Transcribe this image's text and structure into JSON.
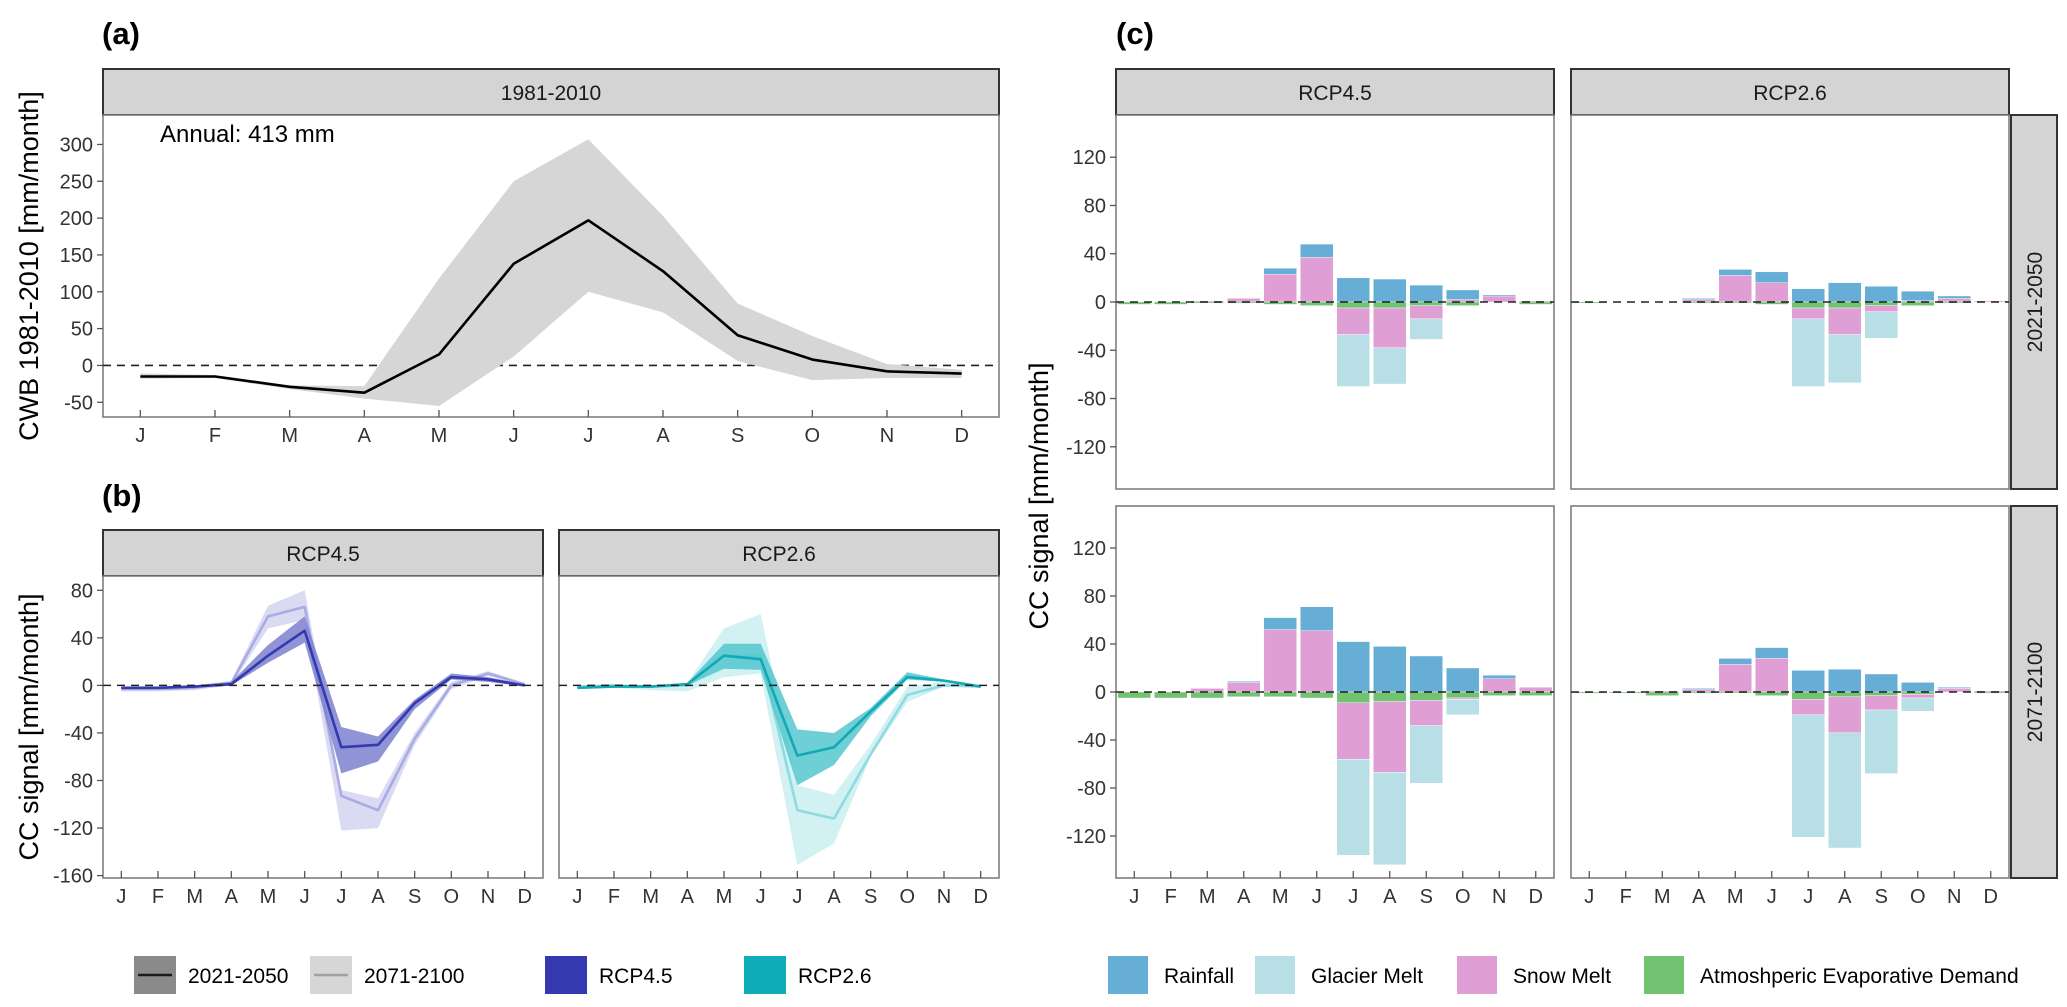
{
  "chart_data": [
    {
      "id": "a",
      "type": "line",
      "panel_label": "(a)",
      "strip": "1981-2010",
      "annotation": "Annual: 413 mm",
      "ylabel": "CWB 1981-2010 [mm/month]",
      "xlabel": "",
      "categories": [
        "J",
        "F",
        "M",
        "A",
        "M",
        "J",
        "J",
        "A",
        "S",
        "O",
        "N",
        "D"
      ],
      "ylim": [
        -70,
        340
      ],
      "yticks": [
        -50,
        0,
        50,
        100,
        150,
        200,
        250,
        300
      ],
      "reference_line": 0,
      "series": [
        {
          "name": "1981-2010",
          "color": "#000000",
          "band_color": "#d6d6d6",
          "values": [
            -15,
            -15,
            -29,
            -37,
            15,
            138,
            197,
            128,
            41,
            8,
            -8,
            -11
          ],
          "lower": [
            -18,
            -17,
            -32,
            -45,
            -55,
            12,
            100,
            72,
            6,
            -20,
            -17,
            -17
          ],
          "upper": [
            -11,
            -13,
            -27,
            -28,
            118,
            250,
            307,
            203,
            84,
            40,
            2,
            -6
          ]
        }
      ]
    },
    {
      "id": "b",
      "type": "line",
      "panel_label": "(b)",
      "ylabel": "CC signal [mm/month]",
      "categories": [
        "J",
        "F",
        "M",
        "A",
        "M",
        "J",
        "J",
        "A",
        "S",
        "O",
        "N",
        "D"
      ],
      "ylim": [
        -162,
        92
      ],
      "yticks": [
        -160,
        -120,
        -80,
        -40,
        0,
        40,
        80
      ],
      "reference_line": 0,
      "facets": [
        {
          "strip": "RCP4.5",
          "series": [
            {
              "name": "2071-2100",
              "color": "#a9ace3",
              "band_color": "#d3d5f1",
              "values": [
                -3,
                -3,
                -2,
                2,
                58,
                66,
                -93,
                -105,
                -45,
                0,
                10,
                1
              ],
              "lower": [
                -5,
                -5,
                -4,
                0,
                48,
                55,
                -122,
                -120,
                -50,
                -3,
                8,
                0
              ],
              "upper": [
                -1,
                -1,
                0,
                4,
                67,
                80,
                -88,
                -95,
                -40,
                3,
                12,
                2
              ]
            },
            {
              "name": "2021-2050",
              "color": "#3539b0",
              "band_color": "#7c80cf",
              "values": [
                -2,
                -2,
                -1,
                1,
                25,
                46,
                -52,
                -50,
                -15,
                7,
                5,
                0
              ],
              "lower": [
                -3,
                -3,
                -2,
                0,
                19,
                36,
                -74,
                -64,
                -20,
                5,
                3,
                -1
              ],
              "upper": [
                -1,
                -1,
                0,
                3,
                34,
                58,
                -35,
                -43,
                -12,
                10,
                7,
                1
              ]
            }
          ]
        },
        {
          "strip": "RCP2.6",
          "series": [
            {
              "name": "2071-2100",
              "color": "#8fdbe0",
              "band_color": "#c9eef1",
              "values": [
                -1,
                0,
                -1,
                0,
                25,
                25,
                -105,
                -112,
                -58,
                -8,
                0,
                -1
              ],
              "lower": [
                -2,
                -2,
                -4,
                -5,
                7,
                10,
                -151,
                -133,
                -60,
                -14,
                -1,
                -2
              ],
              "upper": [
                0,
                1,
                0,
                2,
                48,
                60,
                -84,
                -92,
                -50,
                -1,
                3,
                0
              ]
            },
            {
              "name": "2021-2050",
              "color": "#12a9b5",
              "band_color": "#55c7cf",
              "values": [
                -2,
                -1,
                -1,
                1,
                25,
                22,
                -59,
                -52,
                -22,
                7,
                4,
                -1
              ],
              "lower": [
                -3,
                -2,
                -2,
                0,
                14,
                13,
                -84,
                -67,
                -26,
                5,
                3,
                -2
              ],
              "upper": [
                -1,
                0,
                0,
                2,
                35,
                35,
                -37,
                -40,
                -19,
                11,
                5,
                0
              ]
            }
          ]
        }
      ],
      "legend": {
        "period_items": [
          {
            "label": "2021-2050",
            "fill": "#8a8a8a",
            "line": "#1a1a1a"
          },
          {
            "label": "2071-2100",
            "fill": "#d6d6d6",
            "line": "#a0a0a0"
          }
        ],
        "scenario_items": [
          {
            "label": "RCP4.5",
            "fill": "#3539b0"
          },
          {
            "label": "RCP2.6",
            "fill": "#0fadb9"
          }
        ]
      }
    },
    {
      "id": "c",
      "type": "bar",
      "stacked": true,
      "panel_label": "(c)",
      "ylabel": "CC signal [mm/month]",
      "categories": [
        "J",
        "F",
        "M",
        "A",
        "M",
        "J",
        "J",
        "A",
        "S",
        "O",
        "N",
        "D"
      ],
      "ylim": [
        -155,
        155
      ],
      "yticks": [
        -120,
        -80,
        -40,
        0,
        40,
        80,
        120
      ],
      "reference_line": 0,
      "component_colors": {
        "Rainfall": "#67aed6",
        "Glacier Melt": "#b8dfe6",
        "Snow Melt": "#df9fd4",
        "Atmoshperic Evaporative Demand": "#71c271"
      },
      "column_strips": [
        "RCP4.5",
        "RCP2.6"
      ],
      "row_strips": [
        "2021-2050",
        "2071-2100"
      ],
      "facets": [
        {
          "col": "RCP4.5",
          "row": "2021-2050",
          "rainfall": [
            0,
            0,
            0,
            0,
            5,
            11,
            20,
            19,
            14,
            8,
            1,
            0
          ],
          "snow_melt": [
            0,
            0,
            1,
            3,
            23,
            37,
            -22,
            -33,
            -11,
            2,
            5,
            1
          ],
          "glacier_melt": [
            0,
            0,
            0,
            0,
            0,
            0,
            -43,
            -30,
            -17,
            0,
            0,
            0
          ],
          "evap_demand": [
            -2,
            -2,
            -1,
            -1,
            -2,
            -3,
            -5,
            -5,
            -3,
            -3,
            0,
            -2
          ]
        },
        {
          "col": "RCP2.6",
          "row": "2021-2050",
          "rainfall": [
            0,
            0,
            0,
            1,
            5,
            9,
            11,
            16,
            13,
            8,
            2,
            0
          ],
          "snow_melt": [
            0,
            0,
            0,
            2,
            22,
            16,
            -9,
            -22,
            -5,
            1,
            3,
            1
          ],
          "glacier_melt": [
            0,
            0,
            0,
            0,
            0,
            0,
            -56,
            -40,
            -22,
            0,
            0,
            0
          ],
          "evap_demand": [
            -1,
            0,
            0,
            -1,
            -1,
            -2,
            -5,
            -5,
            -3,
            -3,
            -1,
            0
          ]
        },
        {
          "col": "RCP4.5",
          "row": "2071-2100",
          "rainfall": [
            0,
            0,
            0,
            1,
            10,
            20,
            42,
            38,
            30,
            20,
            3,
            0
          ],
          "snow_melt": [
            0,
            0,
            3,
            8,
            52,
            51,
            -47,
            -59,
            -21,
            -1,
            11,
            4
          ],
          "glacier_melt": [
            0,
            0,
            0,
            0,
            0,
            0,
            -80,
            -77,
            -48,
            -13,
            0,
            0
          ],
          "evap_demand": [
            -5,
            -5,
            -5,
            -4,
            -4,
            -5,
            -9,
            -8,
            -7,
            -5,
            -3,
            -3
          ]
        },
        {
          "col": "RCP2.6",
          "row": "2071-2100",
          "rainfall": [
            0,
            0,
            0,
            1,
            5,
            9,
            18,
            19,
            15,
            8,
            1,
            0
          ],
          "snow_melt": [
            0,
            0,
            1,
            2,
            23,
            28,
            -13,
            -30,
            -12,
            -3,
            3,
            1
          ],
          "glacier_melt": [
            0,
            0,
            0,
            0,
            0,
            0,
            -102,
            -96,
            -53,
            -11,
            0,
            0
          ],
          "evap_demand": [
            -1,
            -1,
            -3,
            -1,
            -1,
            -3,
            -6,
            -4,
            -3,
            -2,
            0,
            -1
          ]
        }
      ],
      "legend": {
        "items": [
          {
            "label": "Rainfall",
            "fill": "#67aed6"
          },
          {
            "label": "Glacier Melt",
            "fill": "#b8dfe6"
          },
          {
            "label": "Snow Melt",
            "fill": "#df9fd4"
          },
          {
            "label": "Atmoshperic Evaporative Demand",
            "fill": "#71c271"
          }
        ]
      }
    }
  ]
}
